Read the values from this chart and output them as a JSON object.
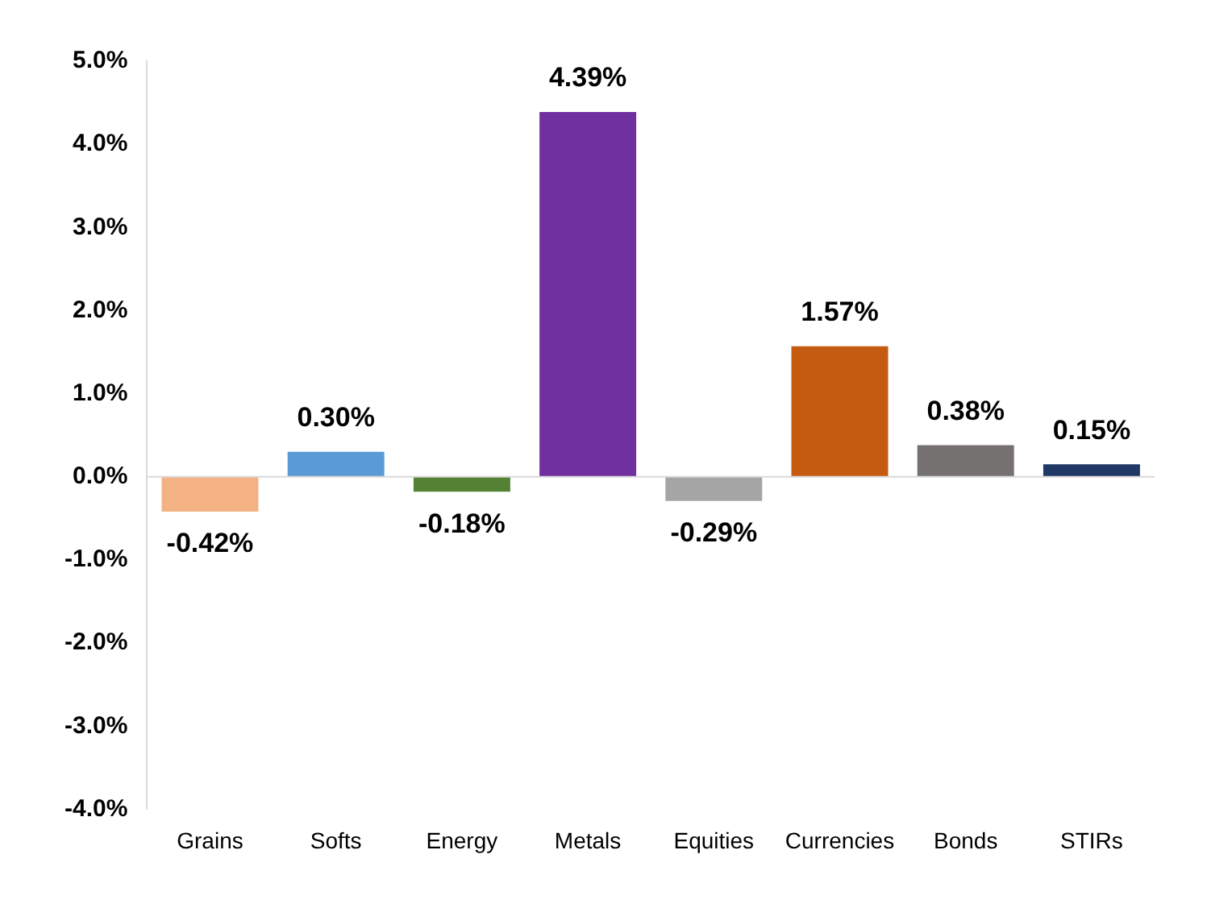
{
  "chart_data": {
    "type": "bar",
    "categories": [
      "Grains",
      "Softs",
      "Energy",
      "Metals",
      "Equities",
      "Currencies",
      "Bonds",
      "STIRs"
    ],
    "values": [
      -0.42,
      0.3,
      -0.18,
      4.39,
      -0.29,
      1.57,
      0.38,
      0.15
    ],
    "colors": [
      "#f4b183",
      "#5b9bd5",
      "#548235",
      "#7030a0",
      "#a5a5a5",
      "#c55a11",
      "#767171",
      "#203864"
    ],
    "value_labels": [
      "-0.42%",
      "0.30%",
      "-0.18%",
      "4.39%",
      "-0.29%",
      "1.57%",
      "0.38%",
      "0.15%"
    ],
    "ylim": [
      -4,
      5
    ],
    "yticks": [
      {
        "value": -4,
        "label": "-4.0%"
      },
      {
        "value": -3,
        "label": "-3.0%"
      },
      {
        "value": -2,
        "label": "-2.0%"
      },
      {
        "value": -1,
        "label": "-1.0%"
      },
      {
        "value": 0,
        "label": "0.0%"
      },
      {
        "value": 1,
        "label": "1.0%"
      },
      {
        "value": 2,
        "label": "2.0%"
      },
      {
        "value": 3,
        "label": "3.0%"
      },
      {
        "value": 4,
        "label": "4.0%"
      },
      {
        "value": 5,
        "label": "5.0%"
      }
    ],
    "ref_lines": [
      {
        "axis": "y",
        "value": 0,
        "color": "#d9d9d9"
      }
    ],
    "grid": false,
    "legend": false
  }
}
